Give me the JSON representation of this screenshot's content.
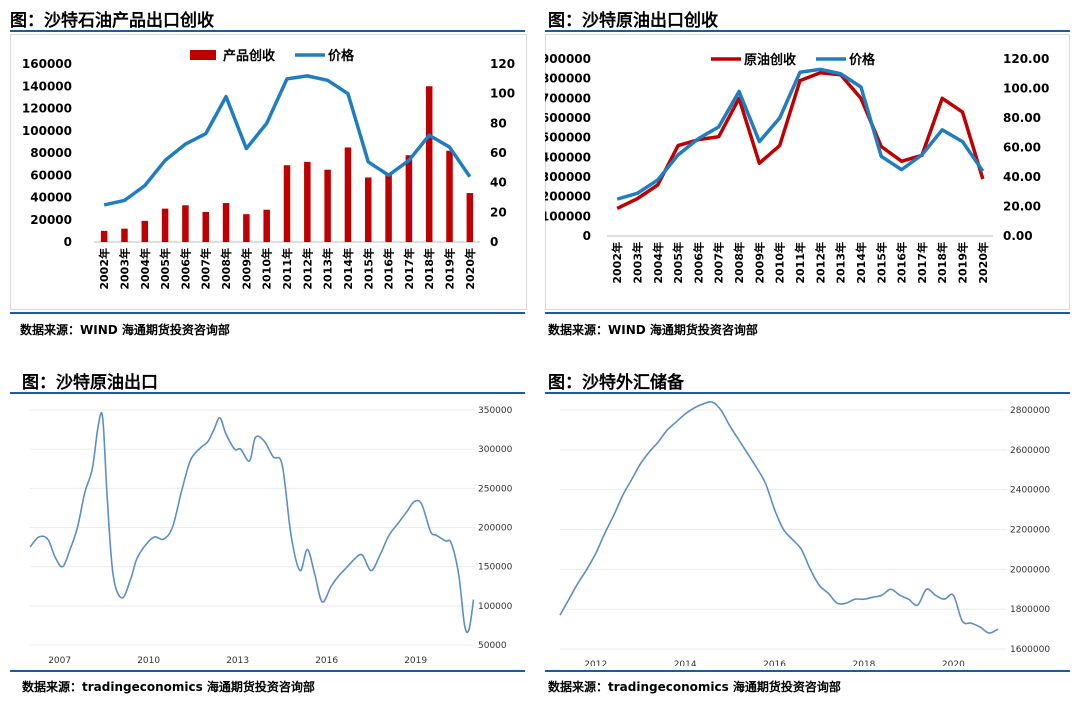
{
  "charts": {
    "c1": {
      "title": "图：沙特石油产品出口创收",
      "source": "数据来源：WIND   海通期货投资咨询部",
      "chart_data": {
        "type": "bar",
        "categories": [
          "2002年",
          "2003年",
          "2004年",
          "2005年",
          "2006年",
          "2007年",
          "2008年",
          "2009年",
          "2010年",
          "2011年",
          "2012年",
          "2013年",
          "2014年",
          "2015年",
          "2016年",
          "2017年",
          "2018年",
          "2019年",
          "2020年"
        ],
        "series": [
          {
            "name": "产品创收",
            "type": "bar",
            "axis": "left",
            "color": "#c00000",
            "values": [
              10000,
              12000,
              19000,
              30000,
              33000,
              27000,
              35000,
              25000,
              29000,
              69000,
              72000,
              65000,
              85000,
              58000,
              61000,
              78000,
              140000,
              82000,
              44000
            ]
          },
          {
            "name": "价格",
            "type": "line",
            "axis": "right",
            "color": "#1f7dc1",
            "values": [
              25,
              28,
              38,
              55,
              66,
              73,
              98,
              63,
              80,
              110,
              112,
              109,
              100,
              54,
              45,
              55,
              72,
              64,
              44
            ]
          }
        ],
        "yleft": {
          "min": 0,
          "max": 160000,
          "ticks": [
            "0",
            "20000",
            "40000",
            "60000",
            "80000",
            "100000",
            "120000",
            "140000",
            "160000"
          ]
        },
        "yright": {
          "min": 0,
          "max": 120,
          "ticks": [
            "0",
            "20",
            "40",
            "60",
            "80",
            "100",
            "120"
          ]
        },
        "legend": "top-center",
        "grid": false
      }
    },
    "c2": {
      "title": "图：沙特原油出口创收",
      "source": "数据来源：WIND   海通期货投资咨询部",
      "chart_data": {
        "type": "line",
        "categories": [
          "2002年",
          "2003年",
          "2004年",
          "2005年",
          "2006年",
          "2007年",
          "2008年",
          "2009年",
          "2010年",
          "2011年",
          "2012年",
          "2013年",
          "2014年",
          "2015年",
          "2016年",
          "2017年",
          "2018年",
          "2019年",
          "2020年"
        ],
        "series": [
          {
            "name": "原油创收",
            "axis": "left",
            "color": "#c00000",
            "values": [
              140000,
              190000,
              260000,
              460000,
              490000,
              505000,
              700000,
              370000,
              460000,
              790000,
              830000,
              820000,
              700000,
              455000,
              380000,
              410000,
              700000,
              630000,
              290000
            ]
          },
          {
            "name": "价格",
            "axis": "right",
            "color": "#1f7dc1",
            "values": [
              25,
              29,
              38,
              55,
              66,
              74,
              98,
              64,
              80,
              111,
              113,
              110,
              101,
              54,
              45,
              55,
              72,
              64,
              44
            ]
          }
        ],
        "yleft": {
          "min": 0,
          "max": 900000,
          "ticks": [
            "0",
            "100000",
            "200000",
            "300000",
            "400000",
            "500000",
            "600000",
            "700000",
            "800000",
            "900000"
          ]
        },
        "yright": {
          "min": 0,
          "max": 120,
          "ticks": [
            "0.00",
            "20.00",
            "40.00",
            "60.00",
            "80.00",
            "100.00",
            "120.00"
          ]
        },
        "legend": "top-center",
        "grid": false
      }
    },
    "c3": {
      "title": "图：沙特原油出口",
      "source": "数据来源：tradingeconomics  海通期货投资咨询部",
      "chart_data": {
        "type": "line",
        "series": [
          {
            "color": "#5b8fc7",
            "x": [
              2006.0,
              2006.3,
              2006.6,
              2006.85,
              2007.1,
              2007.35,
              2007.6,
              2007.85,
              2008.1,
              2008.3,
              2008.45,
              2008.6,
              2008.8,
              2009.1,
              2009.4,
              2009.6,
              2009.9,
              2010.2,
              2010.5,
              2010.8,
              2011.1,
              2011.4,
              2011.7,
              2012.0,
              2012.2,
              2012.4,
              2012.6,
              2012.9,
              2013.1,
              2013.4,
              2013.6,
              2013.9,
              2014.2,
              2014.5,
              2014.8,
              2015.1,
              2015.35,
              2015.6,
              2015.85,
              2016.15,
              2016.4,
              2016.7,
              2016.95,
              2017.2,
              2017.5,
              2017.8,
              2018.1,
              2018.4,
              2018.7,
              2018.95,
              2019.2,
              2019.5,
              2019.7,
              2020.0,
              2020.2,
              2020.45,
              2020.65,
              2020.8,
              2020.95
            ],
            "y": [
              175000,
              188000,
              185000,
              162000,
              150000,
              172000,
              200000,
              245000,
              275000,
              330000,
              340000,
              240000,
              140000,
              110000,
              135000,
              160000,
              178000,
              188000,
              185000,
              200000,
              245000,
              285000,
              300000,
              310000,
              325000,
              340000,
              320000,
              300000,
              300000,
              285000,
              315000,
              310000,
              290000,
              280000,
              190000,
              145000,
              172000,
              140000,
              105000,
              125000,
              138000,
              150000,
              160000,
              165000,
              145000,
              165000,
              190000,
              205000,
              220000,
              233000,
              230000,
              195000,
              190000,
              183000,
              180000,
              140000,
              75000,
              70000,
              108000
            ]
          }
        ],
        "xticks": [
          "2007",
          "2010",
          "2013",
          "2016",
          "2019"
        ],
        "xtick_values": [
          2007,
          2010,
          2013,
          2016,
          2019
        ],
        "xlim": [
          2006.0,
          2021.0
        ],
        "yticks": [
          "50000",
          "100000",
          "150000",
          "200000",
          "250000",
          "300000",
          "350000"
        ],
        "ylim": [
          50000,
          350000
        ],
        "grid": true
      }
    },
    "c4": {
      "title": "图：沙特外汇储备",
      "source": "数据来源：tradingeconomics  海通期货投资咨询部",
      "chart_data": {
        "type": "line",
        "series": [
          {
            "color": "#5b8fc7",
            "x": [
              2011.2,
              2011.4,
              2011.6,
              2011.8,
              2012.0,
              2012.2,
              2012.4,
              2012.6,
              2012.8,
              2013.0,
              2013.2,
              2013.4,
              2013.6,
              2013.8,
              2014.0,
              2014.2,
              2014.4,
              2014.6,
              2014.8,
              2015.0,
              2015.2,
              2015.4,
              2015.6,
              2015.8,
              2016.0,
              2016.2,
              2016.4,
              2016.6,
              2016.8,
              2017.0,
              2017.2,
              2017.4,
              2017.6,
              2017.8,
              2018.0,
              2018.2,
              2018.4,
              2018.6,
              2018.8,
              2019.0,
              2019.2,
              2019.4,
              2019.6,
              2019.8,
              2020.0,
              2020.2,
              2020.4,
              2020.6,
              2020.8,
              2021.0
            ],
            "y": [
              1770000,
              1850000,
              1930000,
              2000000,
              2080000,
              2180000,
              2270000,
              2370000,
              2450000,
              2530000,
              2590000,
              2640000,
              2700000,
              2740000,
              2780000,
              2810000,
              2830000,
              2840000,
              2800000,
              2720000,
              2650000,
              2580000,
              2510000,
              2430000,
              2300000,
              2200000,
              2150000,
              2100000,
              2000000,
              1920000,
              1880000,
              1830000,
              1830000,
              1850000,
              1850000,
              1860000,
              1870000,
              1900000,
              1870000,
              1850000,
              1820000,
              1900000,
              1870000,
              1850000,
              1870000,
              1740000,
              1730000,
              1710000,
              1680000,
              1700000
            ]
          }
        ],
        "xticks": [
          "2012",
          "2014",
          "2016",
          "2018",
          "2020"
        ],
        "xtick_values": [
          2012,
          2014,
          2016,
          2018,
          2020
        ],
        "xlim": [
          2011.2,
          2021.2
        ],
        "yticks": [
          "1600000",
          "1800000",
          "2000000",
          "2200000",
          "2400000",
          "2600000",
          "2800000"
        ],
        "ylim": [
          1600000,
          2800000
        ],
        "grid": true
      }
    }
  }
}
